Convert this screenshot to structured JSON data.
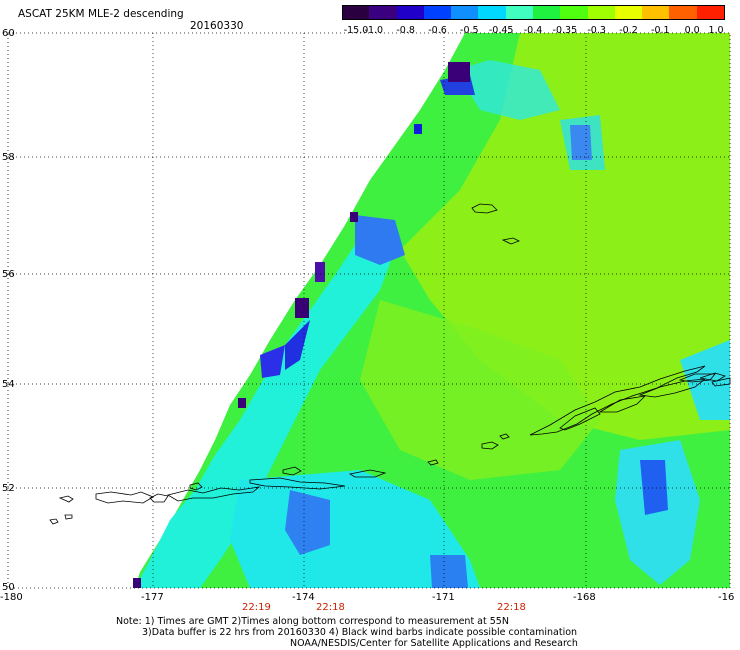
{
  "header": {
    "title": "ASCAT 25KM MLE-2 descending",
    "date": "20160330"
  },
  "colorbar": {
    "labels": [
      "-15.0",
      "-1.0",
      "-0.8",
      "-0.6",
      "-0.5",
      "-0.45",
      "-0.4",
      "-0.35",
      "-0.3",
      "-0.2",
      "-0.1",
      "0.0",
      "1.0"
    ],
    "colors": [
      "#2a0040",
      "#3a0080",
      "#2000c8",
      "#0040ff",
      "#1090ff",
      "#00d8ff",
      "#40ffc0",
      "#20f040",
      "#50ff10",
      "#a0ff00",
      "#e8ff00",
      "#ffc000",
      "#ff6000",
      "#ff2000"
    ]
  },
  "axes": {
    "lat_labels": [
      "60",
      "58",
      "56",
      "54",
      "52",
      "50"
    ],
    "lon_labels": [
      "-180",
      "-177",
      "-174",
      "-171",
      "-168",
      "-16"
    ]
  },
  "times": [
    "22:19",
    "22:18",
    "22:18"
  ],
  "notes": {
    "line1": "Note: 1) Times are GMT 2)Times along bottom correspond to measurement at 55N",
    "line2": "3)Data buffer is 22 hrs from 20160330 4) Black wind barbs indicate possible contamination",
    "line3": "NOAA/NESDIS/Center for Satellite Applications and Research"
  }
}
